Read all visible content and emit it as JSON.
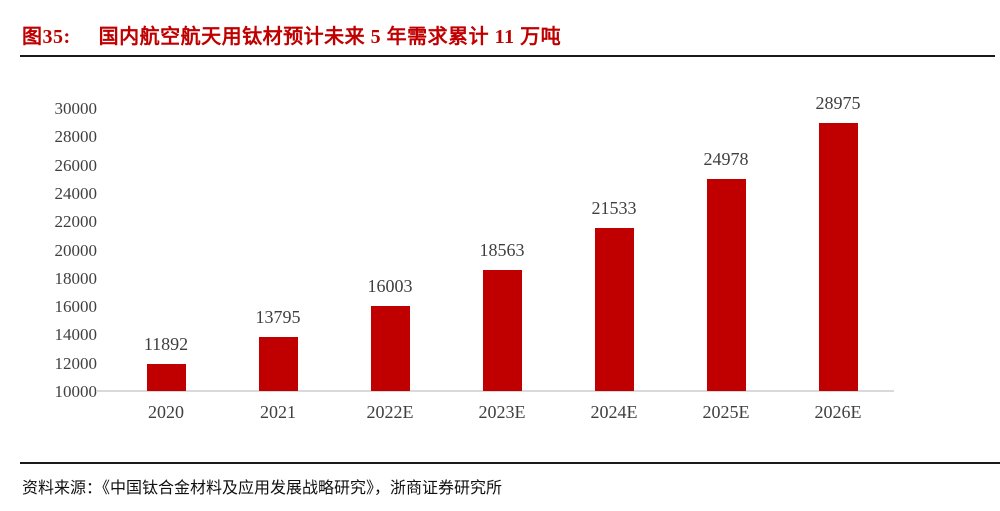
{
  "title": {
    "prefix": "图35:",
    "text": "国内航空航天用钛材预计未来 5 年需求累计 11 万吨"
  },
  "source": {
    "label": "资料来源：",
    "text": "《中国钛合金材料及应用发展战略研究》，浙商证券研究所"
  },
  "colors": {
    "bar": "#c00000",
    "title": "#c00000",
    "axis_text": "#3f3f3f",
    "baseline": "#d9d9d9",
    "rule": "#1a1a1a"
  },
  "chart_data": {
    "type": "bar",
    "title": "国内航空航天用钛材预计未来 5 年需求累计 11 万吨",
    "categories": [
      "2020",
      "2021",
      "2022E",
      "2023E",
      "2024E",
      "2025E",
      "2026E"
    ],
    "values": [
      11892,
      13795,
      16003,
      18563,
      21533,
      24978,
      28975
    ],
    "xlabel": "",
    "ylabel": "",
    "ylim": [
      10000,
      30000
    ],
    "ytick_step": 2000,
    "ytick_labels": [
      "10000",
      "12000",
      "14000",
      "16000",
      "18000",
      "20000",
      "22000",
      "24000",
      "26000",
      "28000",
      "30000"
    ],
    "grid": false,
    "legend_position": "none",
    "data_labels": true,
    "bar_color": "#c00000"
  }
}
